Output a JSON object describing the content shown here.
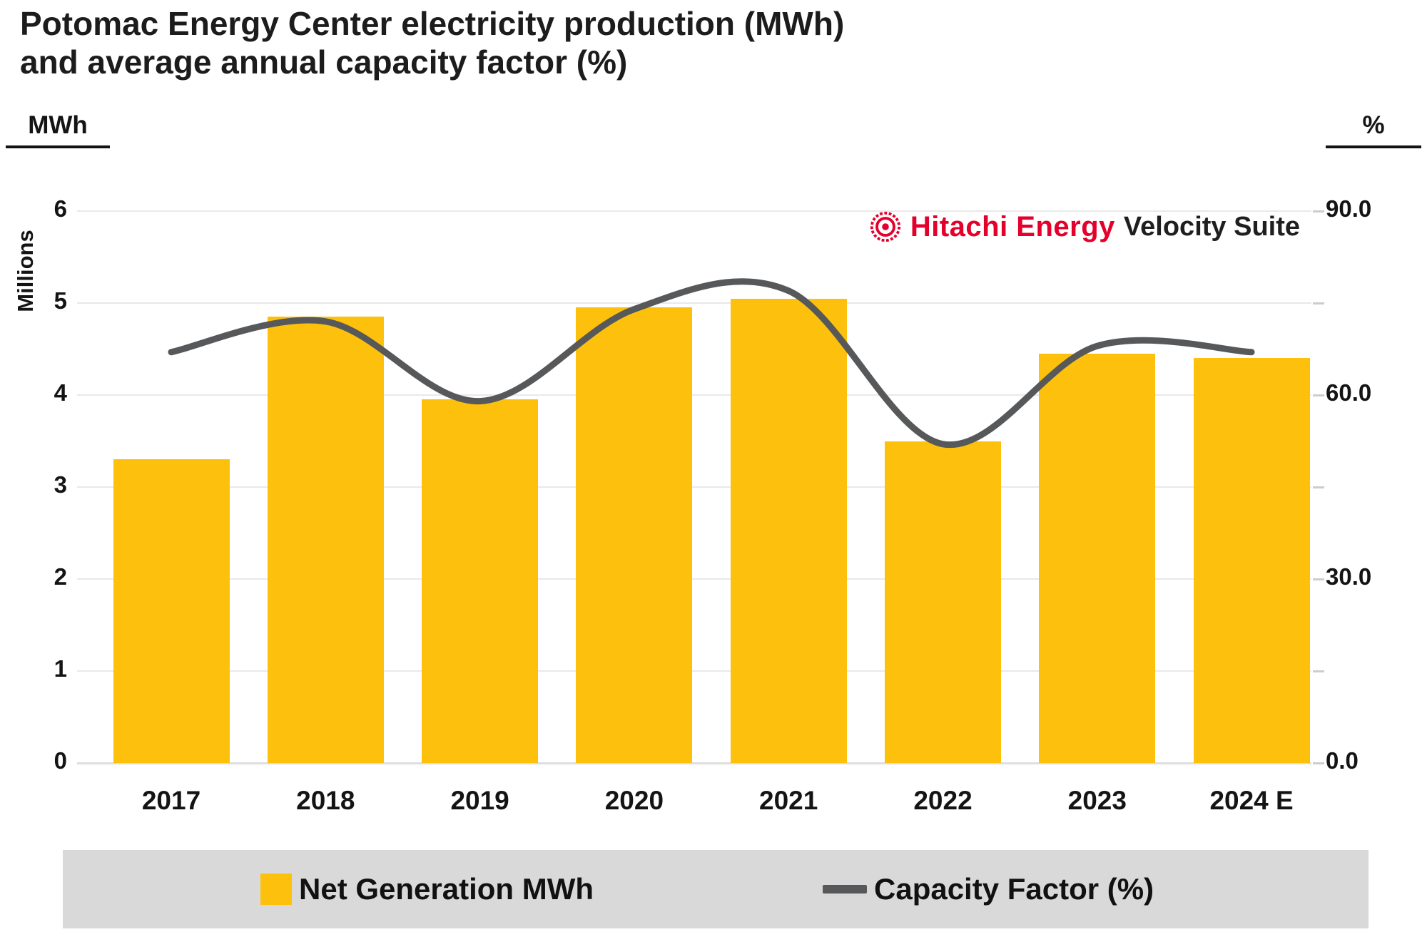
{
  "title": {
    "line1": "Potomac Energy Center electricity production (MWh)",
    "line2": "and average annual capacity factor (%)"
  },
  "branding": {
    "icon": "hitachi-energy-mark",
    "brand": "Hitachi Energy",
    "product": "Velocity Suite",
    "brand_color": "#E4002B",
    "product_color": "#1F1F1F"
  },
  "chart_data": {
    "type": "bar+line",
    "categories": [
      "2017",
      "2018",
      "2019",
      "2020",
      "2021",
      "2022",
      "2023",
      "2024 E"
    ],
    "series": [
      {
        "name": "Net Generation MWh",
        "type": "bar",
        "axis": "left",
        "color": "#FDC10D",
        "values": [
          3.3,
          4.85,
          3.95,
          4.95,
          5.05,
          3.5,
          4.45,
          4.4
        ]
      },
      {
        "name": "Capacity Factor (%)",
        "type": "line",
        "axis": "right",
        "color": "#57585A",
        "values": [
          67,
          72,
          59,
          74,
          77,
          52,
          68,
          67
        ]
      }
    ],
    "left_axis": {
      "unit_label": "MWh",
      "scale_label": "Millions",
      "min": 0,
      "max": 6,
      "ticks": [
        "6",
        "5",
        "4",
        "3",
        "2",
        "1",
        "0"
      ]
    },
    "right_axis": {
      "unit_label": "%",
      "min": 0,
      "max": 90,
      "ticks": [
        "90.0",
        "60.0",
        "30.0",
        "0.0"
      ],
      "minor_tick_step": 15
    },
    "grid": true,
    "legend_position": "bottom"
  },
  "legend": {
    "items": [
      {
        "label": "Net Generation MWh",
        "swatch": "bar"
      },
      {
        "label": "Capacity Factor (%)",
        "swatch": "line"
      }
    ]
  },
  "colors": {
    "bar": "#FDC10D",
    "line": "#57585A",
    "gridline": "#E9E9E9",
    "axis_line": "#DEDEDE",
    "tick_dash": "#CDCDCD",
    "legend_band": "#D9D9D9",
    "text": "#1C1C1C",
    "background": "#FFFFFF"
  }
}
